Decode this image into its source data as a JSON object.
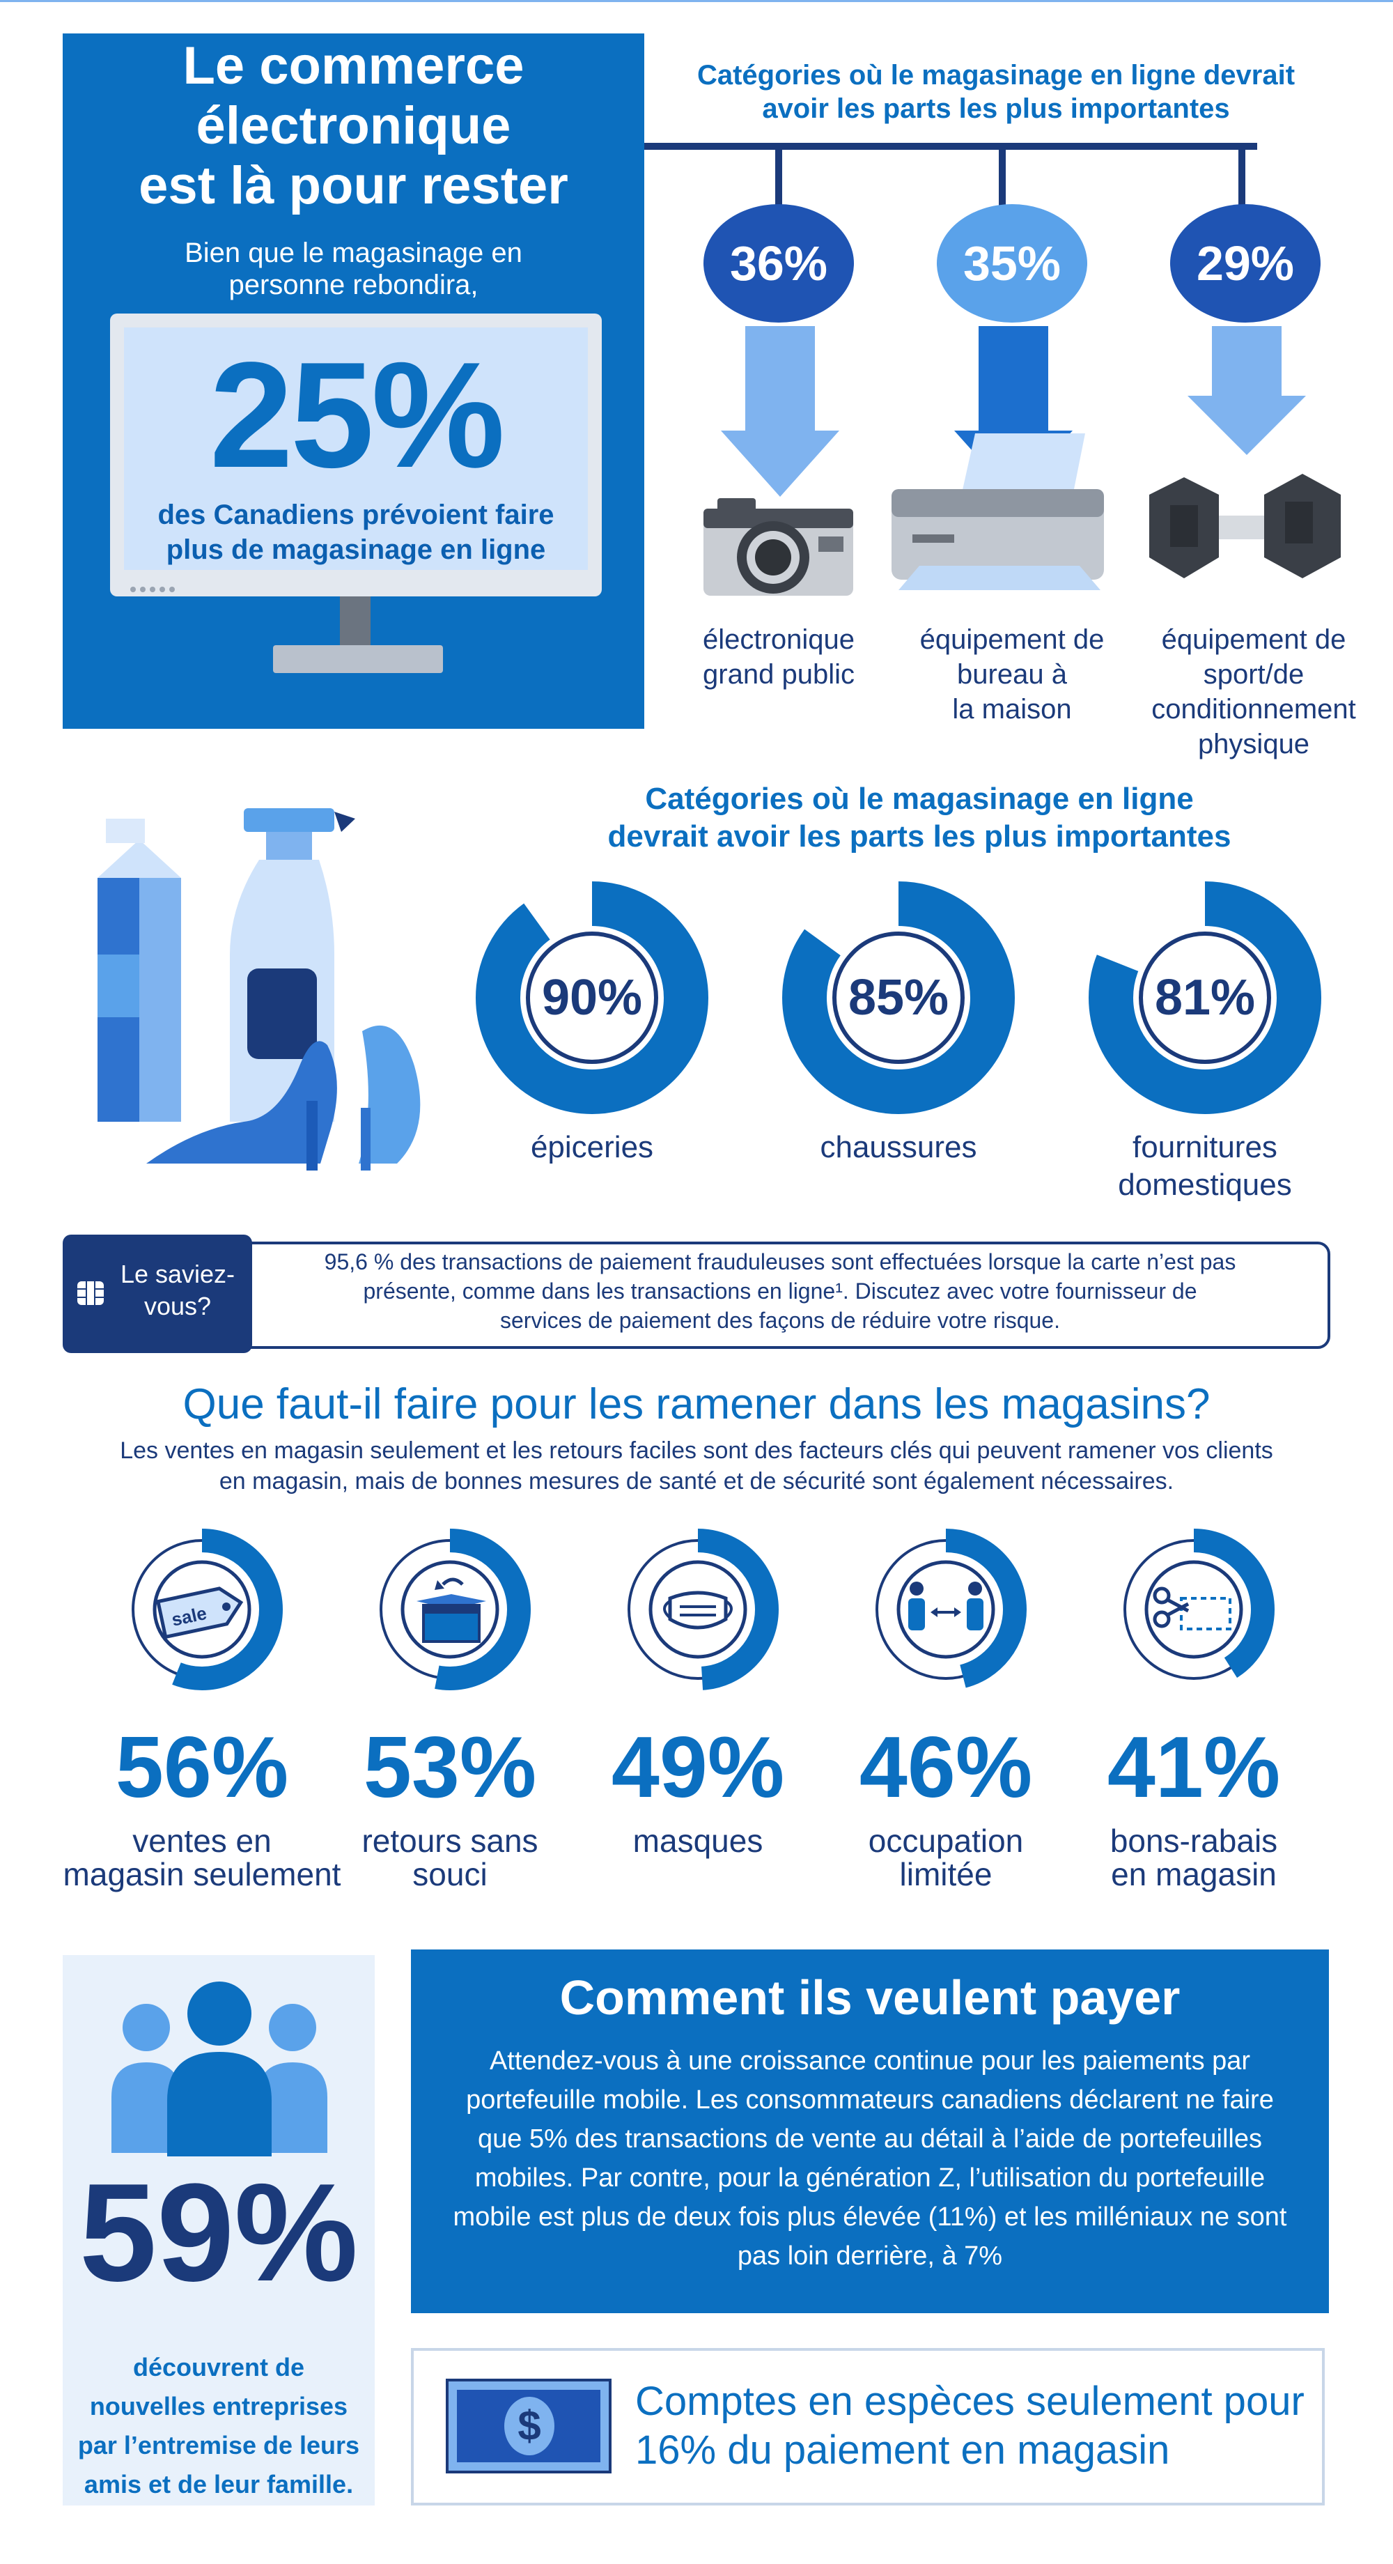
{
  "colors": {
    "blue": "#0b6fc0",
    "navy": "#1b3a7a",
    "light": "#7fb3ef",
    "pale": "#e8f1fb"
  },
  "hero": {
    "title_lines": [
      "Le commerce",
      "électronique",
      "est là pour rester"
    ],
    "sub_lines": [
      "Bien que le magasinage en",
      "personne rebondira,"
    ],
    "big_pct": "25%",
    "desc_lines": [
      "des Canadiens prévoient faire",
      "plus de magasinage en ligne"
    ]
  },
  "top_categories": {
    "heading_lines": [
      "Catégories où le magasinage en ligne devrait",
      "avoir les parts les plus importantes"
    ],
    "items": [
      {
        "pct": "36%",
        "label_lines": [
          "électronique",
          "grand public"
        ],
        "icon": "camera-icon"
      },
      {
        "pct": "35%",
        "label_lines": [
          "équipement de",
          "bureau à",
          "la maison"
        ],
        "icon": "printer-icon"
      },
      {
        "pct": "29%",
        "label_lines": [
          "équipement de",
          "sport/de",
          "conditionnement",
          "physique"
        ],
        "icon": "dumbbell-icon"
      }
    ]
  },
  "donut_categories": {
    "heading_lines": [
      "Catégories où le magasinage en ligne",
      "devrait avoir les parts les plus importantes"
    ],
    "items": [
      {
        "pct": "90%",
        "value": 90,
        "label_lines": [
          "épiceries"
        ]
      },
      {
        "pct": "85%",
        "value": 85,
        "label_lines": [
          "chaussures"
        ]
      },
      {
        "pct": "81%",
        "value": 81,
        "label_lines": [
          "fournitures",
          "domestiques"
        ]
      }
    ]
  },
  "did_you_know": {
    "badge_lines": [
      "Le saviez-",
      "vous?"
    ],
    "text_lines": [
      "95,6 % des transactions de paiement frauduleuses sont effectuées lorsque la carte n’est pas",
      "présente, comme dans les transactions en ligne¹. Discutez avec votre fournisseur de",
      "services de paiement des façons de réduire votre risque."
    ]
  },
  "bring_back": {
    "heading": "Que faut-il faire pour les ramener dans les magasins?",
    "sub_lines": [
      "Les ventes en magasin seulement et les retours faciles sont des facteurs clés qui peuvent ramener vos clients",
      "en magasin, mais de bonnes mesures de santé et de sécurité sont également nécessaires."
    ],
    "items": [
      {
        "pct": "56%",
        "value": 56,
        "label_lines": [
          "ventes en",
          "magasin seulement"
        ],
        "icon": "sale-tag-icon",
        "icon_text": "sale"
      },
      {
        "pct": "53%",
        "value": 53,
        "label_lines": [
          "retours sans",
          "souci"
        ],
        "icon": "return-box-icon"
      },
      {
        "pct": "49%",
        "value": 49,
        "label_lines": [
          "masques"
        ],
        "icon": "mask-icon"
      },
      {
        "pct": "46%",
        "value": 46,
        "label_lines": [
          "occupation",
          "limitée"
        ],
        "icon": "distancing-icon"
      },
      {
        "pct": "41%",
        "value": 41,
        "label_lines": [
          "bons-rabais",
          "en magasin"
        ],
        "icon": "coupon-icon"
      }
    ]
  },
  "friends": {
    "pct": "59%",
    "label_lines": [
      "découvrent de",
      "nouvelles entreprises",
      "par l’entremise de leurs",
      "amis et de leur famille."
    ]
  },
  "pay": {
    "heading": "Comment ils veulent payer",
    "text_lines": [
      "Attendez-vous à une croissance continue pour les paiements par",
      "portefeuille mobile. Les consommateurs canadiens déclarent ne faire",
      "que 5% des transactions de vente au détail à l’aide de portefeuilles",
      "mobiles. Par contre, pour la génération Z, l’utilisation du portefeuille",
      "mobile est plus de deux fois plus élevée (11%) et les milléniaux ne sont",
      "pas loin derrière, à 7%"
    ]
  },
  "cash": {
    "text_lines": [
      "Comptes en espèces seulement pour",
      "16% du paiement en magasin"
    ],
    "icon_symbol": "$"
  }
}
